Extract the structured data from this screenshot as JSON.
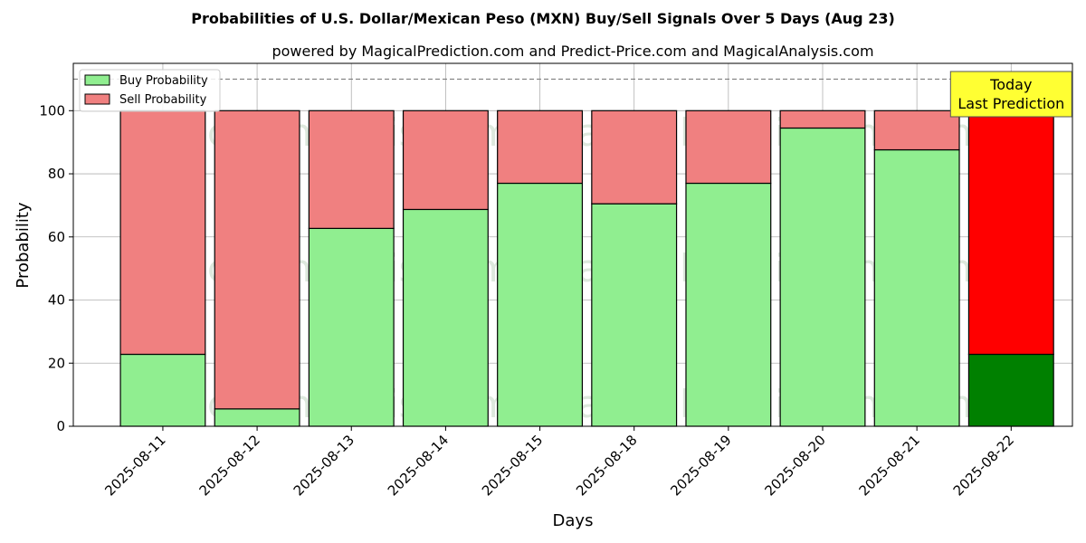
{
  "chart_data": {
    "type": "bar",
    "stacked": true,
    "title": "Probabilities of U.S. Dollar/Mexican Peso (MXN) Buy/Sell Signals Over 5 Days (Aug 23)",
    "subtitle": "powered by MagicalPrediction.com and Predict-Price.com and MagicalAnalysis.com",
    "xlabel": "Days",
    "ylabel": "Probability",
    "ylim": [
      0,
      115
    ],
    "yticks": [
      0,
      20,
      40,
      60,
      80,
      100
    ],
    "grid": true,
    "legend_position": "top-left",
    "reference_line": {
      "y": 110,
      "style": "dashed",
      "color": "#808080"
    },
    "categories": [
      "2025-08-11",
      "2025-08-12",
      "2025-08-13",
      "2025-08-14",
      "2025-08-15",
      "2025-08-18",
      "2025-08-19",
      "2025-08-20",
      "2025-08-21",
      "2025-08-22"
    ],
    "series": [
      {
        "name": "Buy Probability",
        "color": "#90ee90",
        "highlight_color": "#008000",
        "values": [
          22.8,
          5.5,
          62.7,
          68.7,
          77.0,
          70.5,
          77.0,
          94.5,
          87.6,
          22.8
        ]
      },
      {
        "name": "Sell Probability",
        "color": "#f08080",
        "highlight_color": "#ff0000",
        "values": [
          77.2,
          94.5,
          37.3,
          31.3,
          23.0,
          29.5,
          23.0,
          5.5,
          12.4,
          77.2
        ]
      }
    ],
    "highlight_index": 9,
    "annotation": {
      "lines": [
        "Today",
        "Last Prediction"
      ],
      "background": "#ffff33",
      "position": "top-right"
    },
    "watermarks": [
      "MagicalAnalysis.com",
      "MagicalPrediction.com"
    ]
  }
}
